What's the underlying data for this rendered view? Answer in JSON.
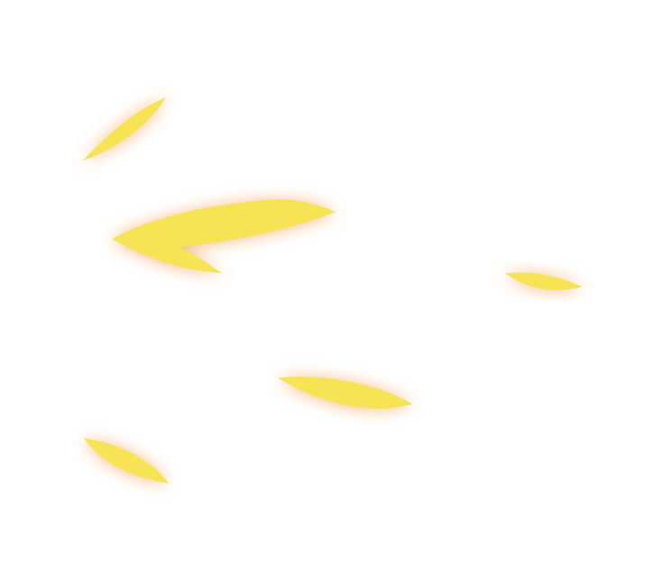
{
  "colors": {
    "background": "#ffffff",
    "petal_fill": "#f6e455",
    "glow": "#f3a45a"
  },
  "scene": {
    "elements": [
      "leaf-petal-small-upper-left",
      "leaf-petal-large-arrow",
      "leaf-petal-right",
      "leaf-petal-center",
      "leaf-petal-lower-left"
    ]
  }
}
